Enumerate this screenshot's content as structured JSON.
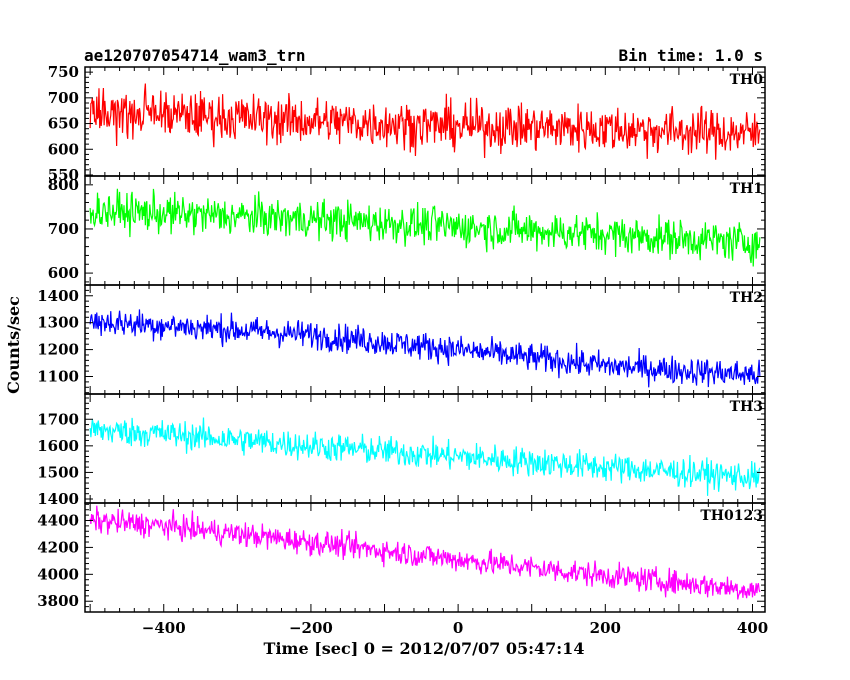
{
  "header": {
    "left": "ae120707054714_wam3_trn",
    "right": "Bin time: 1.0 s"
  },
  "chart_data": {
    "type": "line",
    "xlabel": "Time [sec] 0 = 2012/07/07 05:47:14",
    "ylabel": "Counts/sec",
    "xlim": [
      -507,
      417
    ],
    "xticks": [
      -400,
      -200,
      0,
      200,
      400
    ],
    "x_start": -500,
    "x_end": 410,
    "bin_time": 1.0,
    "panels": [
      {
        "name": "TH0",
        "color": "#ff0000",
        "ylim": [
          548,
          760
        ],
        "yticks": [
          550,
          600,
          650,
          700,
          750
        ],
        "trend": [
          [
            -500,
            672
          ],
          [
            -400,
            668
          ],
          [
            -200,
            655
          ],
          [
            0,
            645
          ],
          [
            200,
            640
          ],
          [
            410,
            630
          ]
        ],
        "noise": 42
      },
      {
        "name": "TH1",
        "color": "#00ff00",
        "ylim": [
          573,
          820
        ],
        "yticks": [
          600,
          700,
          800
        ],
        "trend": [
          [
            -500,
            742
          ],
          [
            -400,
            735
          ],
          [
            -200,
            722
          ],
          [
            0,
            705
          ],
          [
            200,
            688
          ],
          [
            410,
            668
          ]
        ],
        "noise": 40
      },
      {
        "name": "TH2",
        "color": "#0000ff",
        "ylim": [
          1035,
          1440
        ],
        "yticks": [
          1100,
          1200,
          1300,
          1400
        ],
        "trend": [
          [
            -500,
            1305
          ],
          [
            -400,
            1290
          ],
          [
            -200,
            1255
          ],
          [
            0,
            1200
          ],
          [
            200,
            1140
          ],
          [
            410,
            1105
          ]
        ],
        "noise": 48
      },
      {
        "name": "TH3",
        "color": "#00ffff",
        "ylim": [
          1385,
          1795
        ],
        "yticks": [
          1400,
          1500,
          1600,
          1700
        ],
        "trend": [
          [
            -500,
            1660
          ],
          [
            -400,
            1645
          ],
          [
            -200,
            1600
          ],
          [
            0,
            1560
          ],
          [
            200,
            1520
          ],
          [
            410,
            1480
          ]
        ],
        "noise": 50
      },
      {
        "name": "TH0123",
        "color": "#ff00ff",
        "ylim": [
          3720,
          4530
        ],
        "yticks": [
          3800,
          4000,
          4200,
          4400
        ],
        "trend": [
          [
            -500,
            4400
          ],
          [
            -400,
            4360
          ],
          [
            -200,
            4240
          ],
          [
            0,
            4110
          ],
          [
            200,
            3990
          ],
          [
            410,
            3880
          ]
        ],
        "noise": 85
      }
    ]
  }
}
